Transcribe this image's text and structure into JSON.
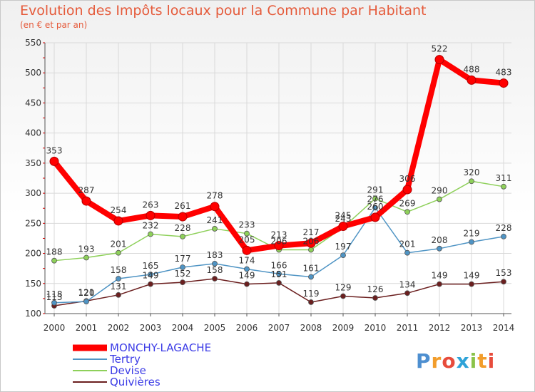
{
  "chart_data": {
    "type": "line",
    "title": "Evolution des Impôts locaux pour la Commune par Habitant",
    "subtitle": "(en € et par an)",
    "xlabel": "",
    "ylabel": "",
    "ylim": [
      100,
      550
    ],
    "yticks": [
      "100",
      "150",
      "200",
      "250",
      "300",
      "350",
      "400",
      "450",
      "500",
      "550"
    ],
    "x": [
      "2000",
      "2001",
      "2002",
      "2003",
      "2004",
      "2005",
      "2006",
      "2007",
      "2008",
      "2009",
      "2010",
      "2011",
      "2012",
      "2013",
      "2014"
    ],
    "grid": true,
    "legend": "bottom-left",
    "series": [
      {
        "name": "MONCHY-LAGACHE",
        "color": "#ff0000",
        "values": [
          353,
          287,
          254,
          263,
          261,
          278,
          205,
          213,
          217,
          245,
          260,
          306,
          522,
          488,
          483
        ],
        "labels": [
          "353",
          "287",
          "254",
          "263",
          "261",
          "278",
          "205",
          "213",
          "217",
          "245",
          "260",
          "306",
          "522",
          "488",
          "483"
        ]
      },
      {
        "name": "Tertry",
        "color": "#4f94c4",
        "values": [
          118,
          120,
          158,
          165,
          177,
          183,
          174,
          166,
          161,
          197,
          276,
          201,
          208,
          219,
          228
        ],
        "labels": [
          "118",
          "120",
          "158",
          "165",
          "177",
          "183",
          "174",
          "166",
          "161",
          "197",
          "276",
          "201",
          "208",
          "219",
          "228"
        ]
      },
      {
        "name": "Devise",
        "color": "#8ed05a",
        "values": [
          188,
          193,
          201,
          232,
          228,
          241,
          233,
          206,
          206,
          243,
          291,
          269,
          290,
          320,
          311
        ],
        "labels": [
          "188",
          "193",
          "201",
          "232",
          "228",
          "241",
          "233",
          "206",
          "206",
          "243",
          "291",
          "269",
          "290",
          "320",
          "311"
        ]
      },
      {
        "name": "Quivières",
        "color": "#6b1f1f",
        "values": [
          113,
          121,
          131,
          149,
          152,
          158,
          149,
          151,
          119,
          129,
          126,
          134,
          149,
          149,
          153
        ],
        "labels": [
          "113",
          "121",
          "131",
          "149",
          "152",
          "158",
          "149",
          "151",
          "119",
          "129",
          "126",
          "134",
          "149",
          "149",
          "153"
        ]
      }
    ]
  },
  "logo": {
    "text": "Proxiti"
  }
}
